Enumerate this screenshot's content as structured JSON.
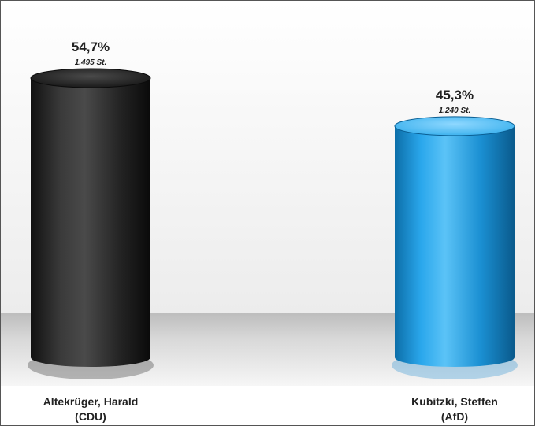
{
  "chart_data": {
    "type": "bar",
    "style": "3d-cylinder",
    "categories": [
      {
        "name": "Altekrüger, Harald",
        "party": "(CDU)"
      },
      {
        "name": "Kubitzki, Steffen",
        "party": "(AfD)"
      }
    ],
    "values": [
      54.7,
      45.3
    ],
    "value_labels": [
      "54,7%",
      "45,3%"
    ],
    "vote_labels": [
      "1.495 St.",
      "1.240 St."
    ],
    "colors": [
      "#2a2a2a",
      "#1f9be0"
    ],
    "ylim": [
      0,
      60
    ],
    "grid": false,
    "legend": "none"
  }
}
